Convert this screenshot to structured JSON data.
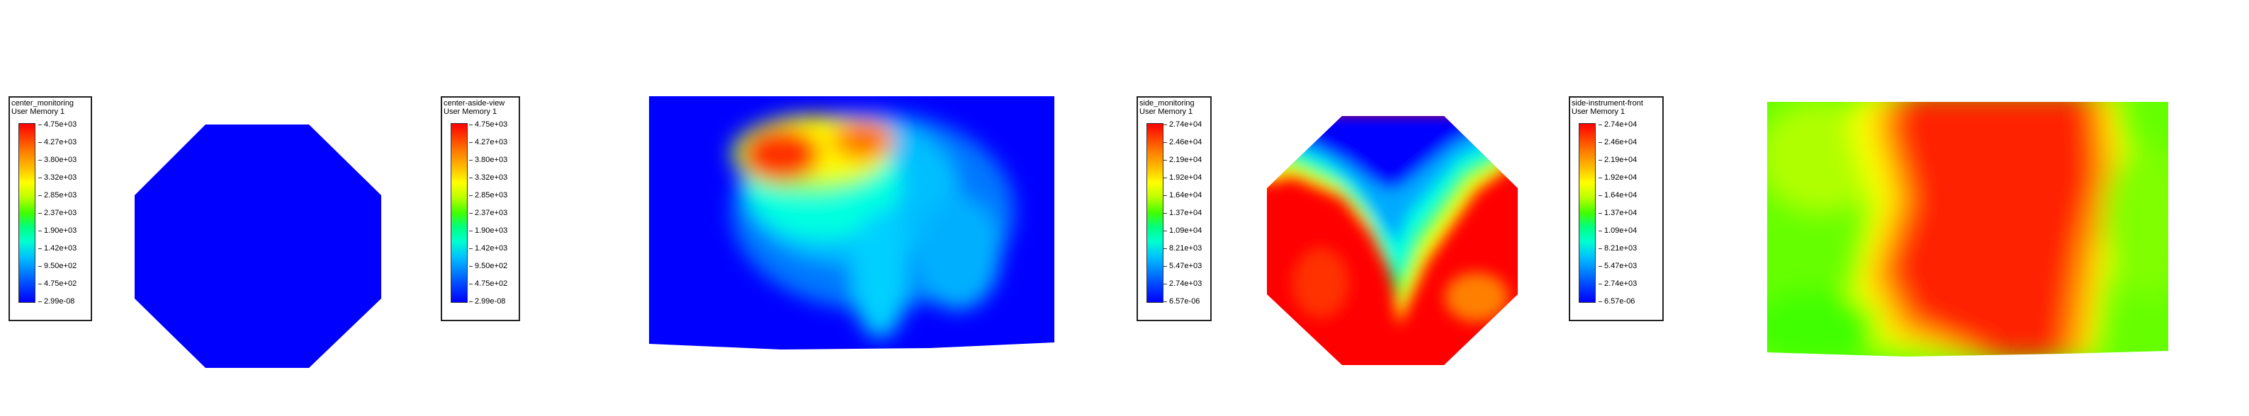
{
  "panels": [
    {
      "legend": {
        "title": "center_monitoring",
        "subtitle": "User Memory 1",
        "ticks": [
          "4.75e+03",
          "4.27e+03",
          "3.80e+03",
          "3.32e+03",
          "2.85e+03",
          "2.37e+03",
          "1.90e+03",
          "1.42e+03",
          "9.50e+02",
          "4.75e+02",
          "2.99e-08"
        ]
      }
    },
    {
      "legend": {
        "title": "center-aside-view",
        "subtitle": "User Memory 1",
        "ticks": [
          "4.75e+03",
          "4.27e+03",
          "3.80e+03",
          "3.32e+03",
          "2.85e+03",
          "2.37e+03",
          "1.90e+03",
          "1.42e+03",
          "9.50e+02",
          "4.75e+02",
          "2.99e-08"
        ]
      }
    },
    {
      "legend": {
        "title": "side_monitoring",
        "subtitle": "User Memory 1",
        "ticks": [
          "2.74e+04",
          "2.46e+04",
          "2.19e+04",
          "1.92e+04",
          "1.64e+04",
          "1.37e+04",
          "1.09e+04",
          "8.21e+03",
          "5.47e+03",
          "2.74e+03",
          "6.57e-06"
        ]
      }
    },
    {
      "legend": {
        "title": "side-instrument-front",
        "subtitle": "User Memory 1",
        "ticks": [
          "2.74e+04",
          "2.46e+04",
          "2.19e+04",
          "1.92e+04",
          "1.64e+04",
          "1.37e+04",
          "1.09e+04",
          "8.21e+03",
          "5.47e+03",
          "2.74e+03",
          "6.57e-06"
        ]
      }
    }
  ]
}
